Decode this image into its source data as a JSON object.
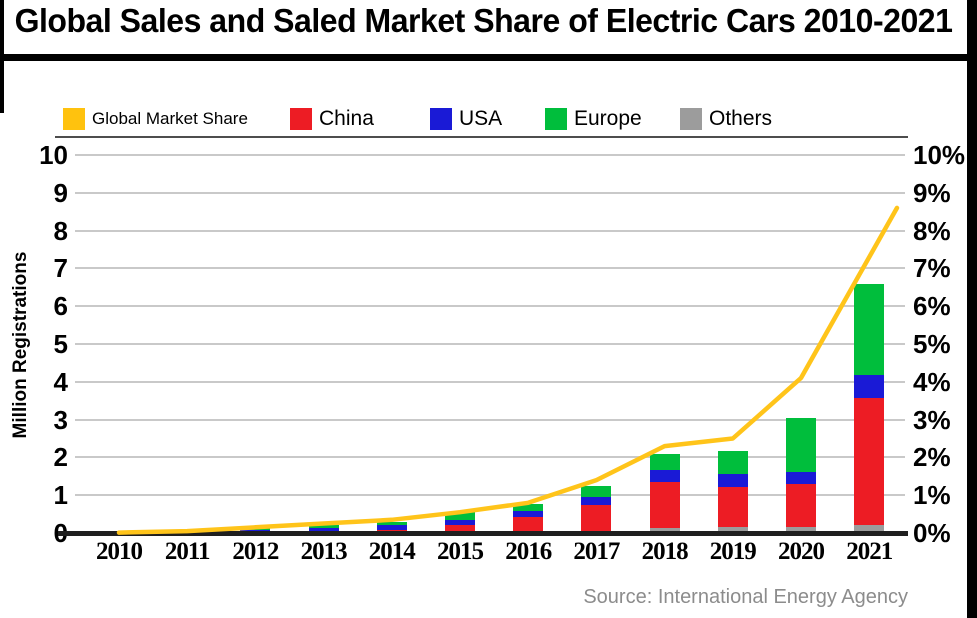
{
  "header": {
    "title": "Global Sales and Saled Market Share of Electric Cars 2010-2021"
  },
  "legend": [
    {
      "label": "Global Market Share",
      "color": "#FFC20E"
    },
    {
      "label": "China",
      "color": "#ED1C24"
    },
    {
      "label": "USA",
      "color": "#1A1AD6"
    },
    {
      "label": "Europe",
      "color": "#00BE3C"
    },
    {
      "label": "Others",
      "color": "#9C9C9C"
    }
  ],
  "chart_data": {
    "type": "bar",
    "subtype": "stacked-bars-with-line",
    "title": "Global Sales and Saled Market Share of Electric Cars 2010-2021",
    "categories": [
      "2010",
      "2011",
      "2012",
      "2013",
      "2014",
      "2015",
      "2016",
      "2017",
      "2018",
      "2019",
      "2020",
      "2021"
    ],
    "series": [
      {
        "name": "Others",
        "color": "#9C9C9C",
        "stack_position": "bottom",
        "values": [
          0.0,
          0.0,
          0.0,
          0.01,
          0.01,
          0.03,
          0.02,
          0.04,
          0.13,
          0.15,
          0.15,
          0.2
        ]
      },
      {
        "name": "China",
        "color": "#ED1C24",
        "stack_position": "second",
        "values": [
          0.0,
          0.01,
          0.01,
          0.03,
          0.07,
          0.19,
          0.4,
          0.7,
          1.21,
          1.06,
          1.15,
          3.37
        ]
      },
      {
        "name": "USA",
        "color": "#1A1AD6",
        "stack_position": "third",
        "values": [
          0.01,
          0.02,
          0.07,
          0.09,
          0.12,
          0.13,
          0.15,
          0.21,
          0.32,
          0.34,
          0.31,
          0.6
        ]
      },
      {
        "name": "Europe",
        "color": "#00BE3C",
        "stack_position": "top",
        "values": [
          0.0,
          0.02,
          0.04,
          0.07,
          0.1,
          0.2,
          0.21,
          0.3,
          0.43,
          0.62,
          1.44,
          2.43
        ]
      }
    ],
    "line_series": {
      "name": "Global Market Share",
      "color": "#FFC41A",
      "axis": "right",
      "unit": "%",
      "values": [
        0.01,
        0.05,
        0.15,
        0.25,
        0.35,
        0.55,
        0.8,
        1.4,
        2.3,
        2.5,
        4.1,
        8.6
      ]
    },
    "ylabel_left": "Million Registrations",
    "left_axis_ticks": [
      "10",
      "9",
      "8",
      "7",
      "6",
      "5",
      "4",
      "3",
      "2",
      "1",
      "0"
    ],
    "right_axis_ticks": [
      "10%",
      "9%",
      "8%",
      "7%",
      "6%",
      "5%",
      "4%",
      "3%",
      "2%",
      "1%",
      "0%"
    ],
    "ylim_left": [
      0,
      10
    ],
    "ylim_right_percent": [
      0,
      10
    ],
    "grid": true,
    "legend_position": "top"
  },
  "footer": {
    "source": "Source: International Energy Agency"
  }
}
